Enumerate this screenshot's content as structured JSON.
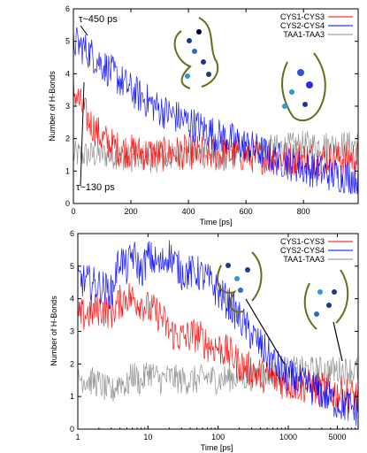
{
  "chart_data": [
    {
      "type": "line",
      "xlabel": "Time [ps]",
      "ylabel": "Number of H-Bonds",
      "xlim": [
        0,
        990
      ],
      "ylim": [
        0,
        6
      ],
      "x_ticks": [
        "0",
        "200",
        "400",
        "600",
        "800"
      ],
      "x_tick_values": [
        0,
        200,
        400,
        600,
        800
      ],
      "y_ticks": [
        "0",
        "1",
        "2",
        "3",
        "4",
        "5",
        "6"
      ],
      "y_tick_values": [
        0,
        1,
        2,
        3,
        4,
        5,
        6
      ],
      "legend_position": "top-right",
      "series": [
        {
          "name": "CYS1-CYS3",
          "color": "#ff0000",
          "x": [
            0,
            50,
            100,
            150,
            200,
            300,
            400,
            500,
            600,
            700,
            800,
            900,
            990
          ],
          "values": [
            3.5,
            2.6,
            2.0,
            1.7,
            1.6,
            1.5,
            1.6,
            1.5,
            1.5,
            1.4,
            1.4,
            1.4,
            1.4
          ]
        },
        {
          "name": "CYS2-CYS4",
          "color": "#0000ff",
          "x": [
            0,
            50,
            100,
            150,
            200,
            300,
            400,
            500,
            600,
            700,
            800,
            900,
            990
          ],
          "values": [
            5.0,
            4.7,
            4.3,
            3.9,
            3.5,
            2.9,
            2.5,
            2.1,
            1.8,
            1.4,
            1.1,
            0.9,
            0.8
          ]
        },
        {
          "name": "TAA1-TAA3",
          "color": "#888888",
          "x": [
            0,
            50,
            100,
            150,
            200,
            300,
            400,
            500,
            600,
            700,
            800,
            900,
            990
          ],
          "values": [
            1.5,
            1.5,
            1.5,
            1.5,
            1.4,
            1.4,
            1.5,
            1.5,
            1.6,
            1.7,
            1.8,
            1.8,
            1.8
          ]
        }
      ],
      "annotations": [
        {
          "text": "τ~450 ps",
          "x": 10,
          "y": 5.4
        },
        {
          "text": "τ~130 ps",
          "x": 5,
          "y": 0.4
        }
      ]
    },
    {
      "type": "line",
      "xlabel": "Time [ps]",
      "ylabel": "Number of H-Bonds",
      "x_scale": "log",
      "xlim": [
        1,
        9900
      ],
      "ylim": [
        0,
        6
      ],
      "x_ticks": [
        "1",
        "10",
        "100",
        "1000",
        "5000"
      ],
      "x_tick_values": [
        1,
        10,
        100,
        1000,
        5000
      ],
      "y_ticks": [
        "0",
        "1",
        "2",
        "3",
        "4",
        "5",
        "6"
      ],
      "y_tick_values": [
        0,
        1,
        2,
        3,
        4,
        5,
        6
      ],
      "legend_position": "top-right",
      "series": [
        {
          "name": "CYS1-CYS3",
          "color": "#ff0000",
          "x": [
            1,
            2,
            3,
            4,
            5,
            6,
            8,
            10,
            15,
            20,
            30,
            50,
            70,
            100,
            150,
            200,
            300,
            500,
            700,
            1000,
            2000,
            3000,
            5000,
            9900
          ],
          "values": [
            3.4,
            3.7,
            3.6,
            3.9,
            4.1,
            4.0,
            3.9,
            3.7,
            3.5,
            3.0,
            2.8,
            2.9,
            2.6,
            2.5,
            2.3,
            2.0,
            1.8,
            1.6,
            1.5,
            1.4,
            1.3,
            1.2,
            1.1,
            1.0
          ]
        },
        {
          "name": "CYS2-CYS4",
          "color": "#0000ff",
          "x": [
            1,
            2,
            3,
            4,
            5,
            6,
            8,
            10,
            15,
            20,
            30,
            50,
            70,
            100,
            150,
            200,
            300,
            500,
            700,
            1000,
            2000,
            3000,
            5000,
            9900
          ],
          "values": [
            4.6,
            4.4,
            4.2,
            5.3,
            4.9,
            5.4,
            4.8,
            5.3,
            5.0,
            5.4,
            4.8,
            4.8,
            4.6,
            4.2,
            3.8,
            3.4,
            2.9,
            2.3,
            1.9,
            1.6,
            1.3,
            1.1,
            0.8,
            0.6
          ]
        },
        {
          "name": "TAA1-TAA3",
          "color": "#888888",
          "x": [
            1,
            2,
            3,
            4,
            5,
            6,
            8,
            10,
            15,
            20,
            30,
            50,
            70,
            100,
            150,
            200,
            300,
            500,
            700,
            1000,
            2000,
            3000,
            5000,
            9900
          ],
          "values": [
            1.6,
            1.4,
            1.1,
            1.5,
            1.3,
            1.7,
            1.4,
            1.8,
            1.5,
            1.6,
            1.5,
            1.5,
            1.6,
            1.5,
            1.6,
            1.6,
            1.6,
            1.7,
            1.7,
            1.8,
            1.8,
            1.8,
            1.8,
            1.8
          ]
        }
      ]
    }
  ]
}
